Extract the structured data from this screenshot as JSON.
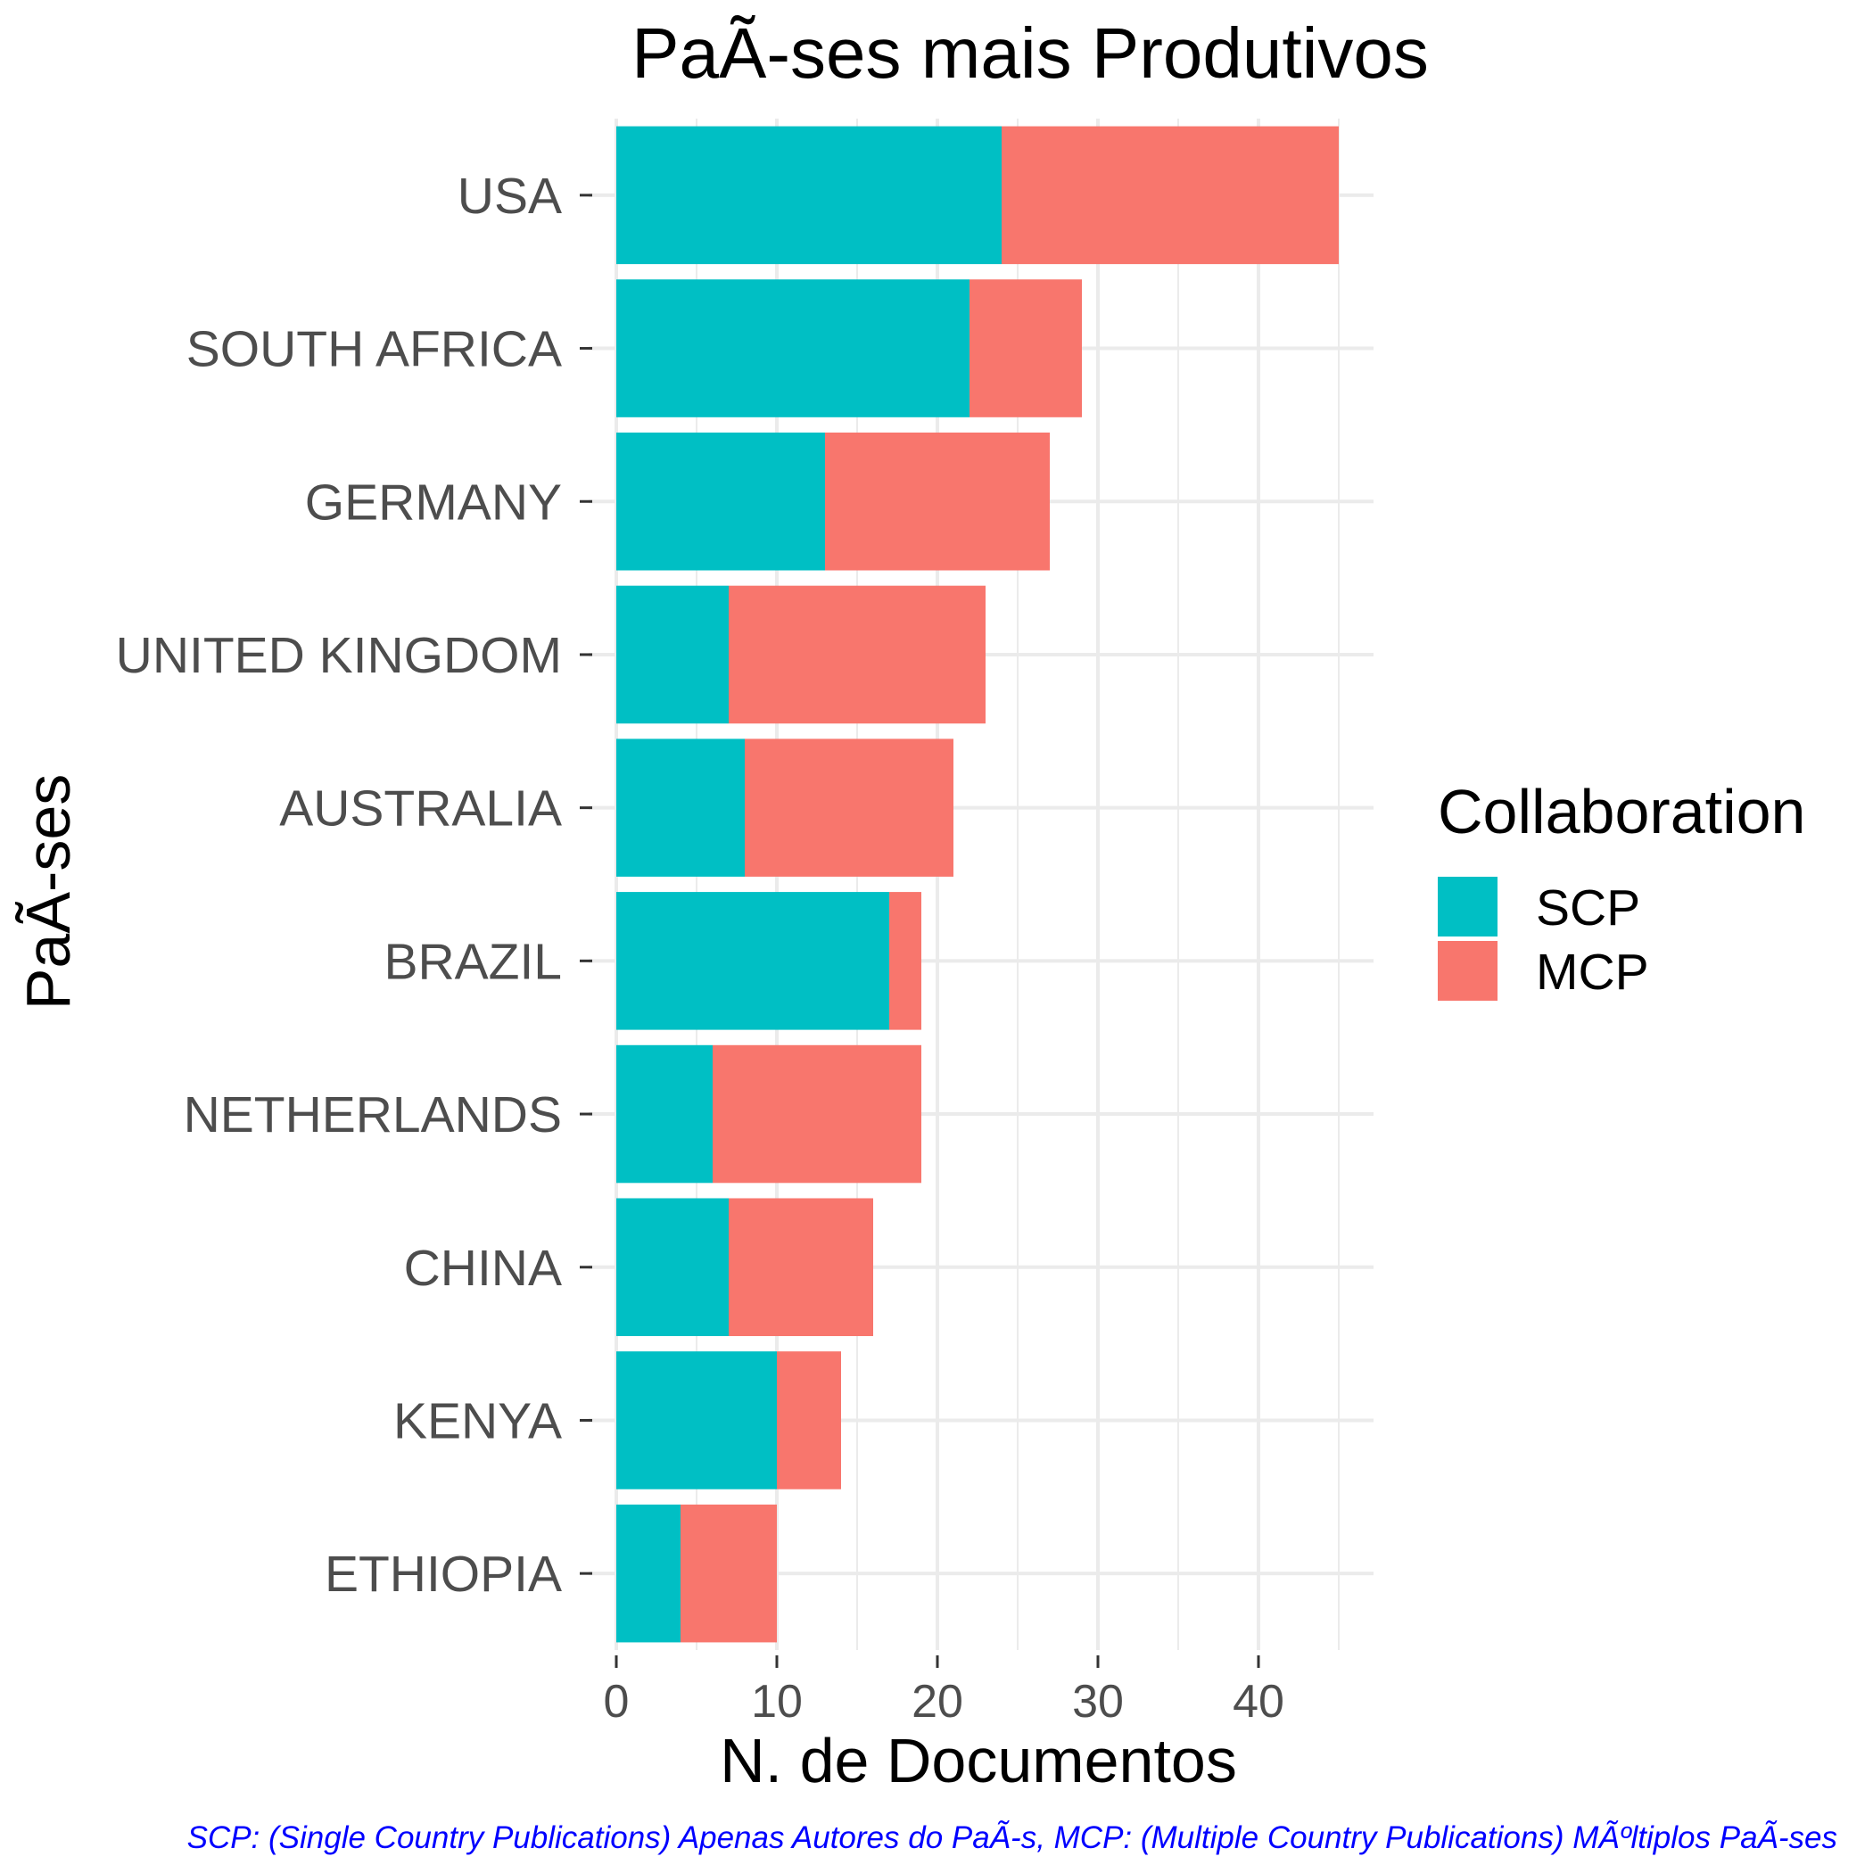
{
  "chart_data": {
    "type": "bar",
    "orientation": "horizontal",
    "stacked": true,
    "title": "PaÃ-ses mais Produtivos",
    "xlabel": "N. de Documentos",
    "ylabel": "PaÃ-ses",
    "categories": [
      "USA",
      "SOUTH AFRICA",
      "GERMANY",
      "UNITED KINGDOM",
      "AUSTRALIA",
      "BRAZIL",
      "NETHERLANDS",
      "CHINA",
      "KENYA",
      "ETHIOPIA"
    ],
    "series": [
      {
        "name": "SCP",
        "color": "#00BFC4",
        "values": [
          24,
          22,
          13,
          7,
          8,
          17,
          6,
          7,
          10,
          4
        ]
      },
      {
        "name": "MCP",
        "color": "#F8766D",
        "values": [
          21,
          7,
          14,
          16,
          13,
          2,
          13,
          9,
          4,
          6
        ]
      }
    ],
    "xlim": [
      0,
      47
    ],
    "xticks": [
      0,
      10,
      20,
      30,
      40
    ],
    "grid": true,
    "legend": {
      "title": "Collaboration",
      "placement": "right"
    },
    "caption": "SCP: (Single Country Publications) Apenas Autores do PaÃ-s, MCP: (Multiple Country Publications) MÃºltiplos PaÃ-ses"
  }
}
